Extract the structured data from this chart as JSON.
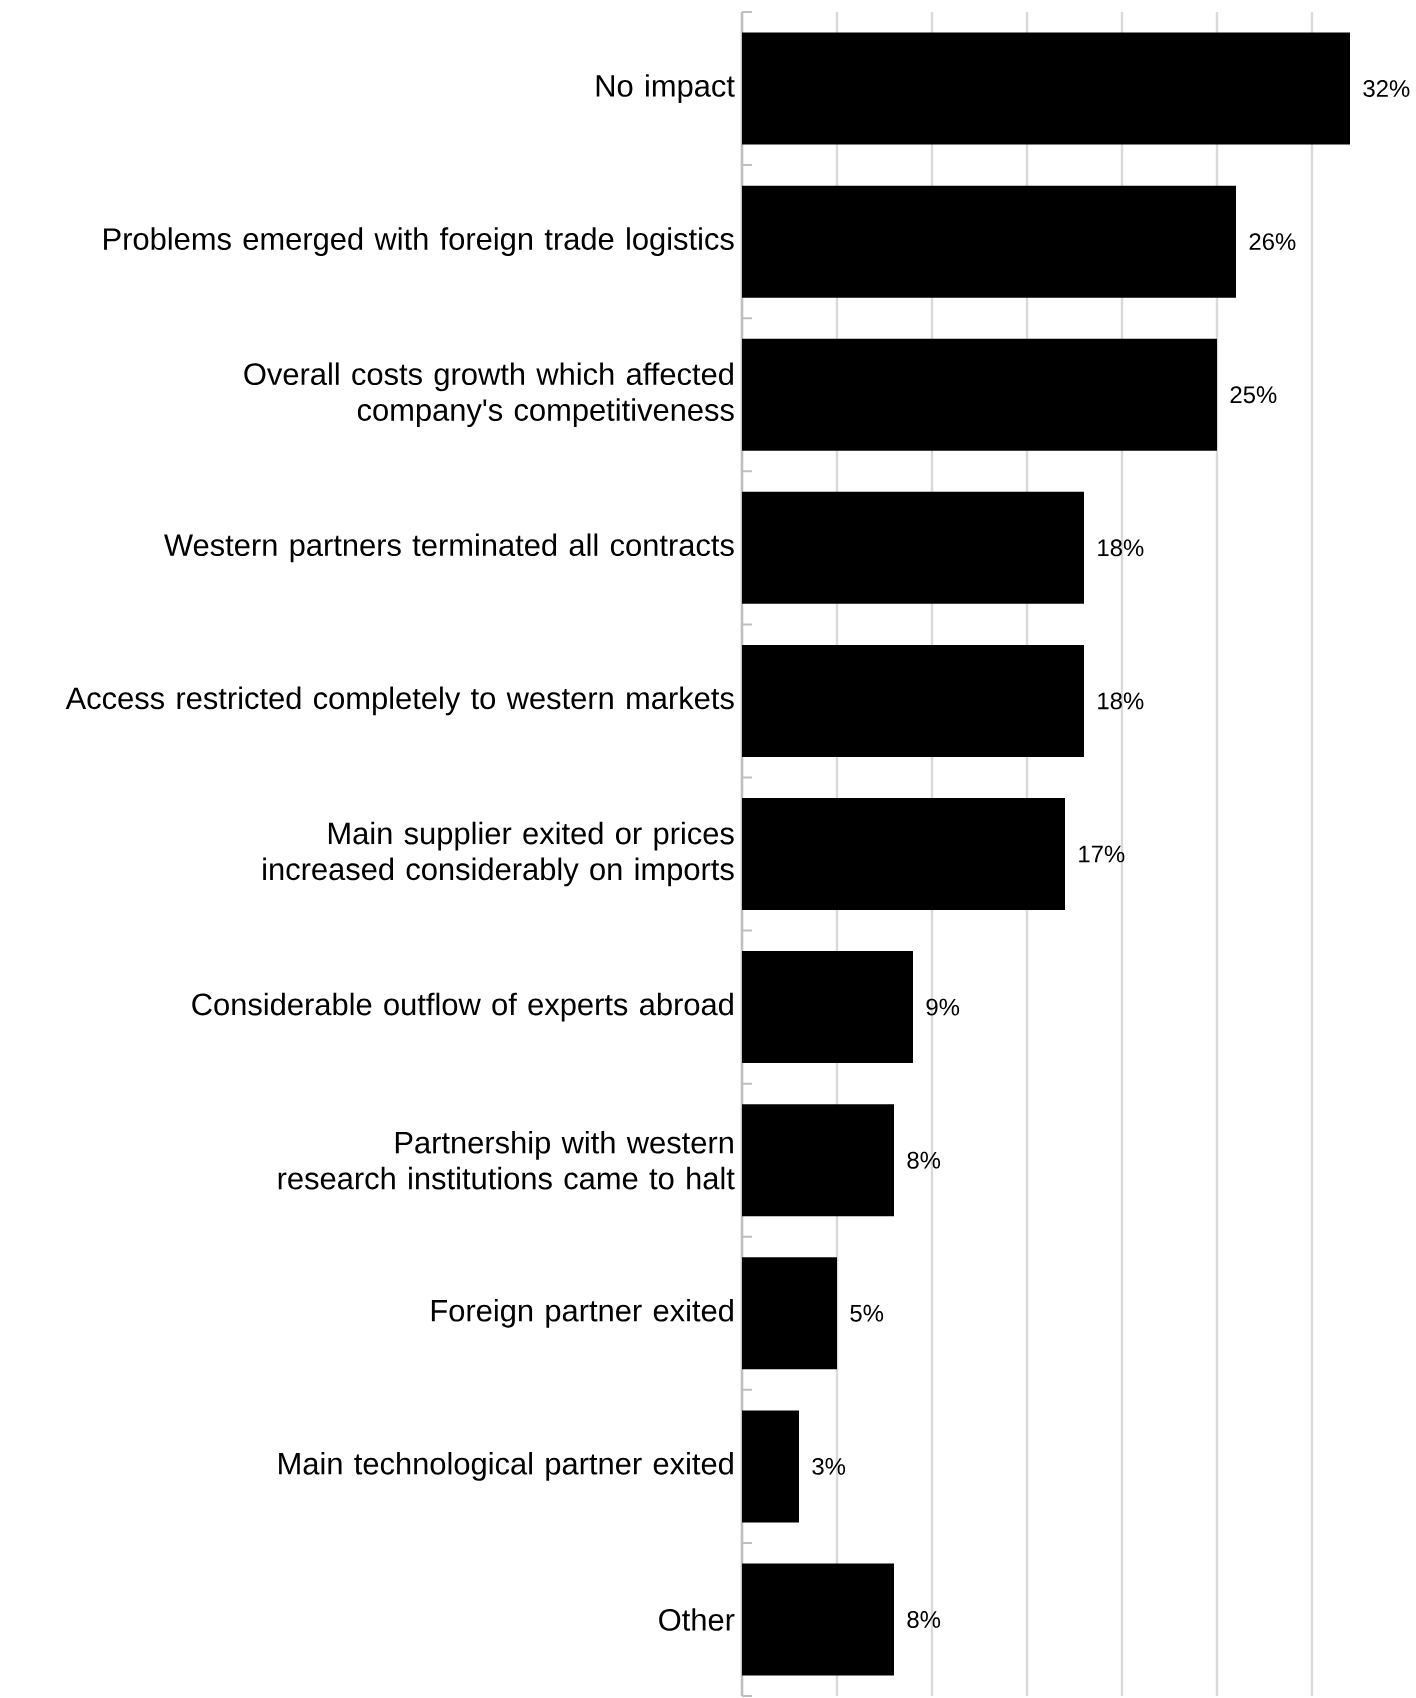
{
  "chart_data": {
    "type": "bar",
    "orientation": "horizontal",
    "categories": [
      "No impact",
      "Problems emerged with foreign trade logistics",
      "Overall costs growth which affected company's competitiveness",
      "Western partners terminated all contracts",
      "Access restricted completely to western markets",
      "Main supplier exited or prices increased considerably on imports",
      "Considerable outflow of experts abroad",
      "Partnership with western research institutions came to halt",
      "Foreign partner exited",
      "Main technological partner exited",
      "Other"
    ],
    "values": [
      32,
      26,
      25,
      18,
      18,
      17,
      9,
      8,
      5,
      3,
      8
    ],
    "value_labels": [
      "32%",
      "26%",
      "25%",
      "18%",
      "18%",
      "17%",
      "9%",
      "8%",
      "5%",
      "3%",
      "8%"
    ],
    "color": "#000000",
    "xlim": [
      0,
      32
    ],
    "tick_labels": "y",
    "grid": "x"
  }
}
